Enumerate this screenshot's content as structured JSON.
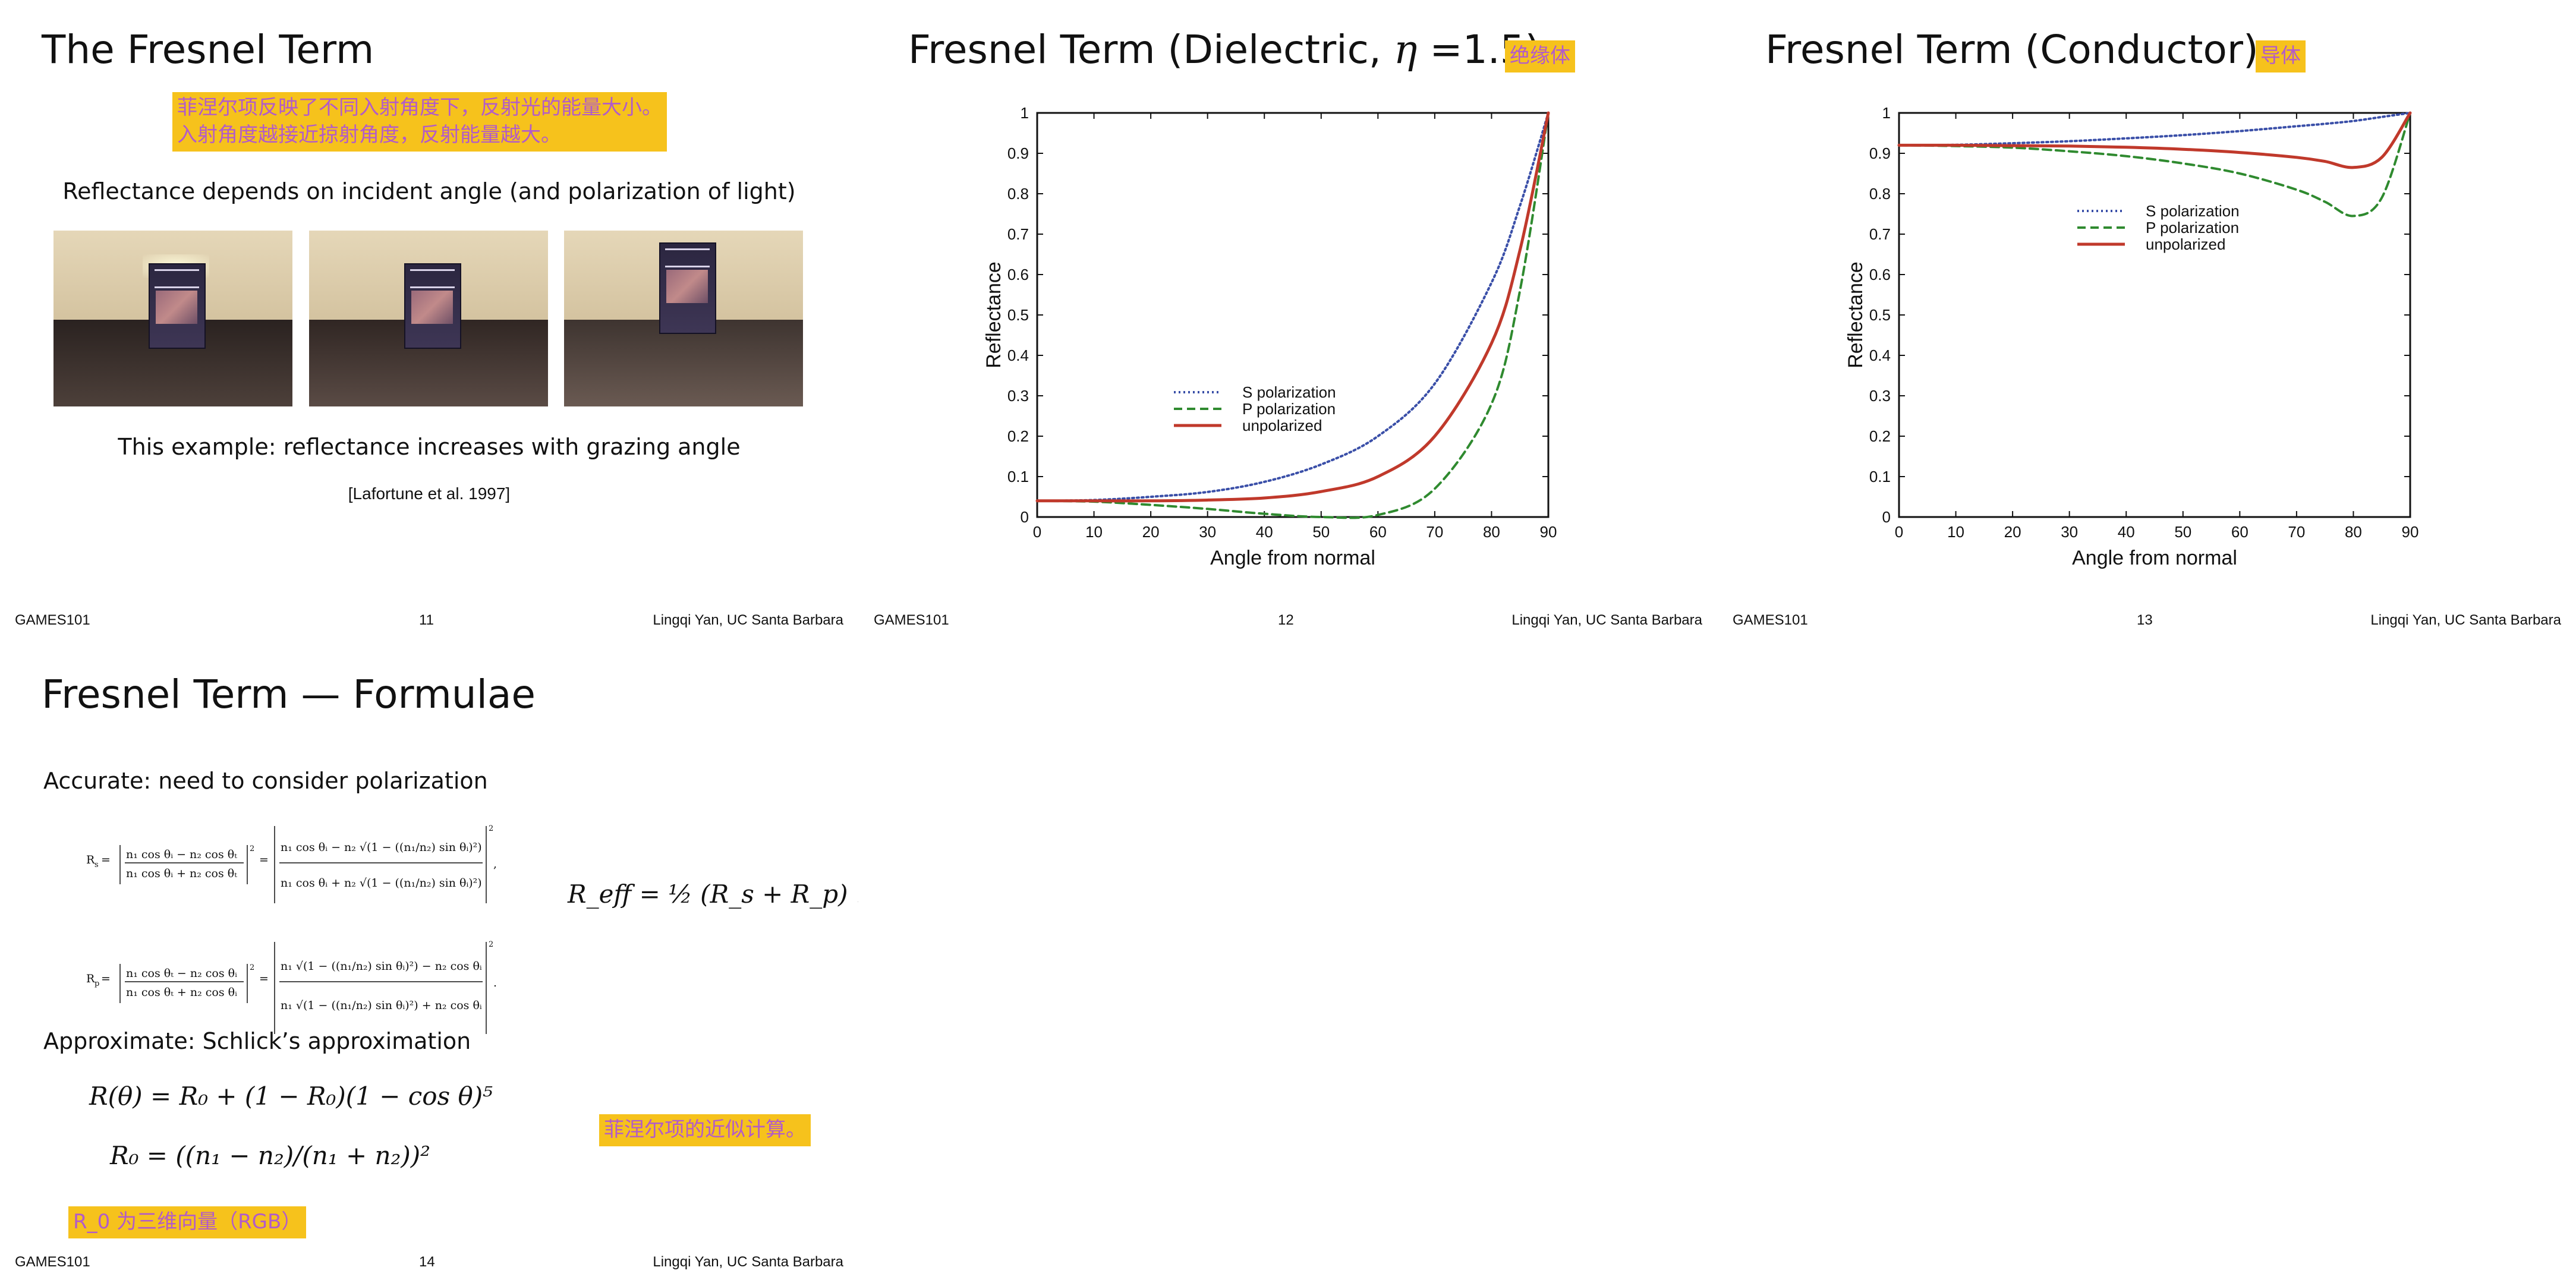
{
  "slides": [
    {
      "title": "The Fresnel Term",
      "annotation_lines": [
        "菲涅尔项反映了不同入射角度下，反射光的能量大小。",
        "入射角度越接近掠射角度，反射能量越大。"
      ],
      "subtitle": "Reflectance depends on incident angle (and polarization of light)",
      "caption": "This example: reflectance increases with grazing angle",
      "citation": "[Lafortune et al. 1997]",
      "footer_left": "GAMES101",
      "page": "11",
      "footer_right": "Lingqi Yan, UC Santa Barbara"
    },
    {
      "title_prefix": "Fresnel Term (Dielectric, ",
      "title_eta": "η",
      "title_suffix": " =1.5)",
      "annotation": "绝缘体",
      "footer_left": "GAMES101",
      "page": "12",
      "footer_right": "Lingqi Yan, UC Santa Barbara"
    },
    {
      "title": "Fresnel Term (Conductor)",
      "annotation": "导体",
      "footer_left": "GAMES101",
      "page": "13",
      "footer_right": "Lingqi Yan, UC Santa Barbara"
    },
    {
      "title": "Fresnel Term — Formulae",
      "accurate_label": "Accurate: need to consider polarization",
      "approx_label": "Approximate: Schlick’s approximation",
      "reff": "R_eff = ½ (R_s + R_p) .",
      "schlick_line1": "R(θ) = R₀ + (1 − R₀)(1 − cos θ)⁵",
      "schlick_line2": "R₀ = ((n₁ − n₂)/(n₁ + n₂))²",
      "annotation_approx": "菲涅尔项的近似计算。",
      "annotation_r0": "R_0 为三维向量（RGB）",
      "footer_left": "GAMES101",
      "page": "14",
      "footer_right": "Lingqi Yan, UC Santa Barbara"
    }
  ],
  "colors": {
    "s": "#3a4fa8",
    "p": "#2f8a2f",
    "u": "#c0392b",
    "highlight": "#f6c21c",
    "annotation_text": "#b25bc9"
  },
  "chart_data": [
    {
      "type": "line",
      "xlabel": "Angle from normal",
      "ylabel": "Reflectance",
      "xlim": [
        0,
        90
      ],
      "ylim": [
        0,
        1
      ],
      "x_ticks": [
        "0",
        "10",
        "20",
        "30",
        "40",
        "50",
        "60",
        "70",
        "80",
        "90"
      ],
      "y_ticks": [
        "0",
        "0.1",
        "0.2",
        "0.3",
        "0.4",
        "0.5",
        "0.6",
        "0.7",
        "0.8",
        "0.9",
        "1"
      ],
      "legend_placement": "lower-center",
      "x": [
        0,
        10,
        20,
        30,
        40,
        50,
        60,
        70,
        80,
        85,
        90
      ],
      "series": [
        {
          "name": "S polarization",
          "style": "dotted",
          "values": [
            0.04,
            0.042,
            0.05,
            0.062,
            0.087,
            0.13,
            0.2,
            0.33,
            0.58,
            0.77,
            1.0
          ]
        },
        {
          "name": "P polarization",
          "style": "dashed",
          "values": [
            0.04,
            0.038,
            0.03,
            0.02,
            0.008,
            0.0,
            0.005,
            0.07,
            0.28,
            0.56,
            1.0
          ]
        },
        {
          "name": "unpolarized",
          "style": "solid",
          "values": [
            0.04,
            0.04,
            0.04,
            0.042,
            0.047,
            0.063,
            0.1,
            0.2,
            0.43,
            0.66,
            1.0
          ]
        }
      ]
    },
    {
      "type": "line",
      "xlabel": "Angle from normal",
      "ylabel": "Reflectance",
      "xlim": [
        0,
        90
      ],
      "ylim": [
        0,
        1
      ],
      "x_ticks": [
        "0",
        "10",
        "20",
        "30",
        "40",
        "50",
        "60",
        "70",
        "80",
        "90"
      ],
      "y_ticks": [
        "0",
        "0.1",
        "0.2",
        "0.3",
        "0.4",
        "0.5",
        "0.6",
        "0.7",
        "0.8",
        "0.9",
        "1"
      ],
      "legend_placement": "upper-center",
      "x": [
        0,
        10,
        20,
        30,
        40,
        50,
        60,
        70,
        75,
        80,
        85,
        90
      ],
      "series": [
        {
          "name": "S polarization",
          "style": "dotted",
          "values": [
            0.92,
            0.921,
            0.925,
            0.93,
            0.937,
            0.945,
            0.955,
            0.967,
            0.973,
            0.98,
            0.99,
            1.0
          ]
        },
        {
          "name": "P polarization",
          "style": "dashed",
          "values": [
            0.92,
            0.918,
            0.914,
            0.905,
            0.893,
            0.875,
            0.85,
            0.81,
            0.78,
            0.745,
            0.79,
            1.0
          ]
        },
        {
          "name": "unpolarized",
          "style": "solid",
          "values": [
            0.92,
            0.92,
            0.919,
            0.918,
            0.915,
            0.91,
            0.902,
            0.89,
            0.88,
            0.865,
            0.89,
            1.0
          ]
        }
      ]
    }
  ]
}
